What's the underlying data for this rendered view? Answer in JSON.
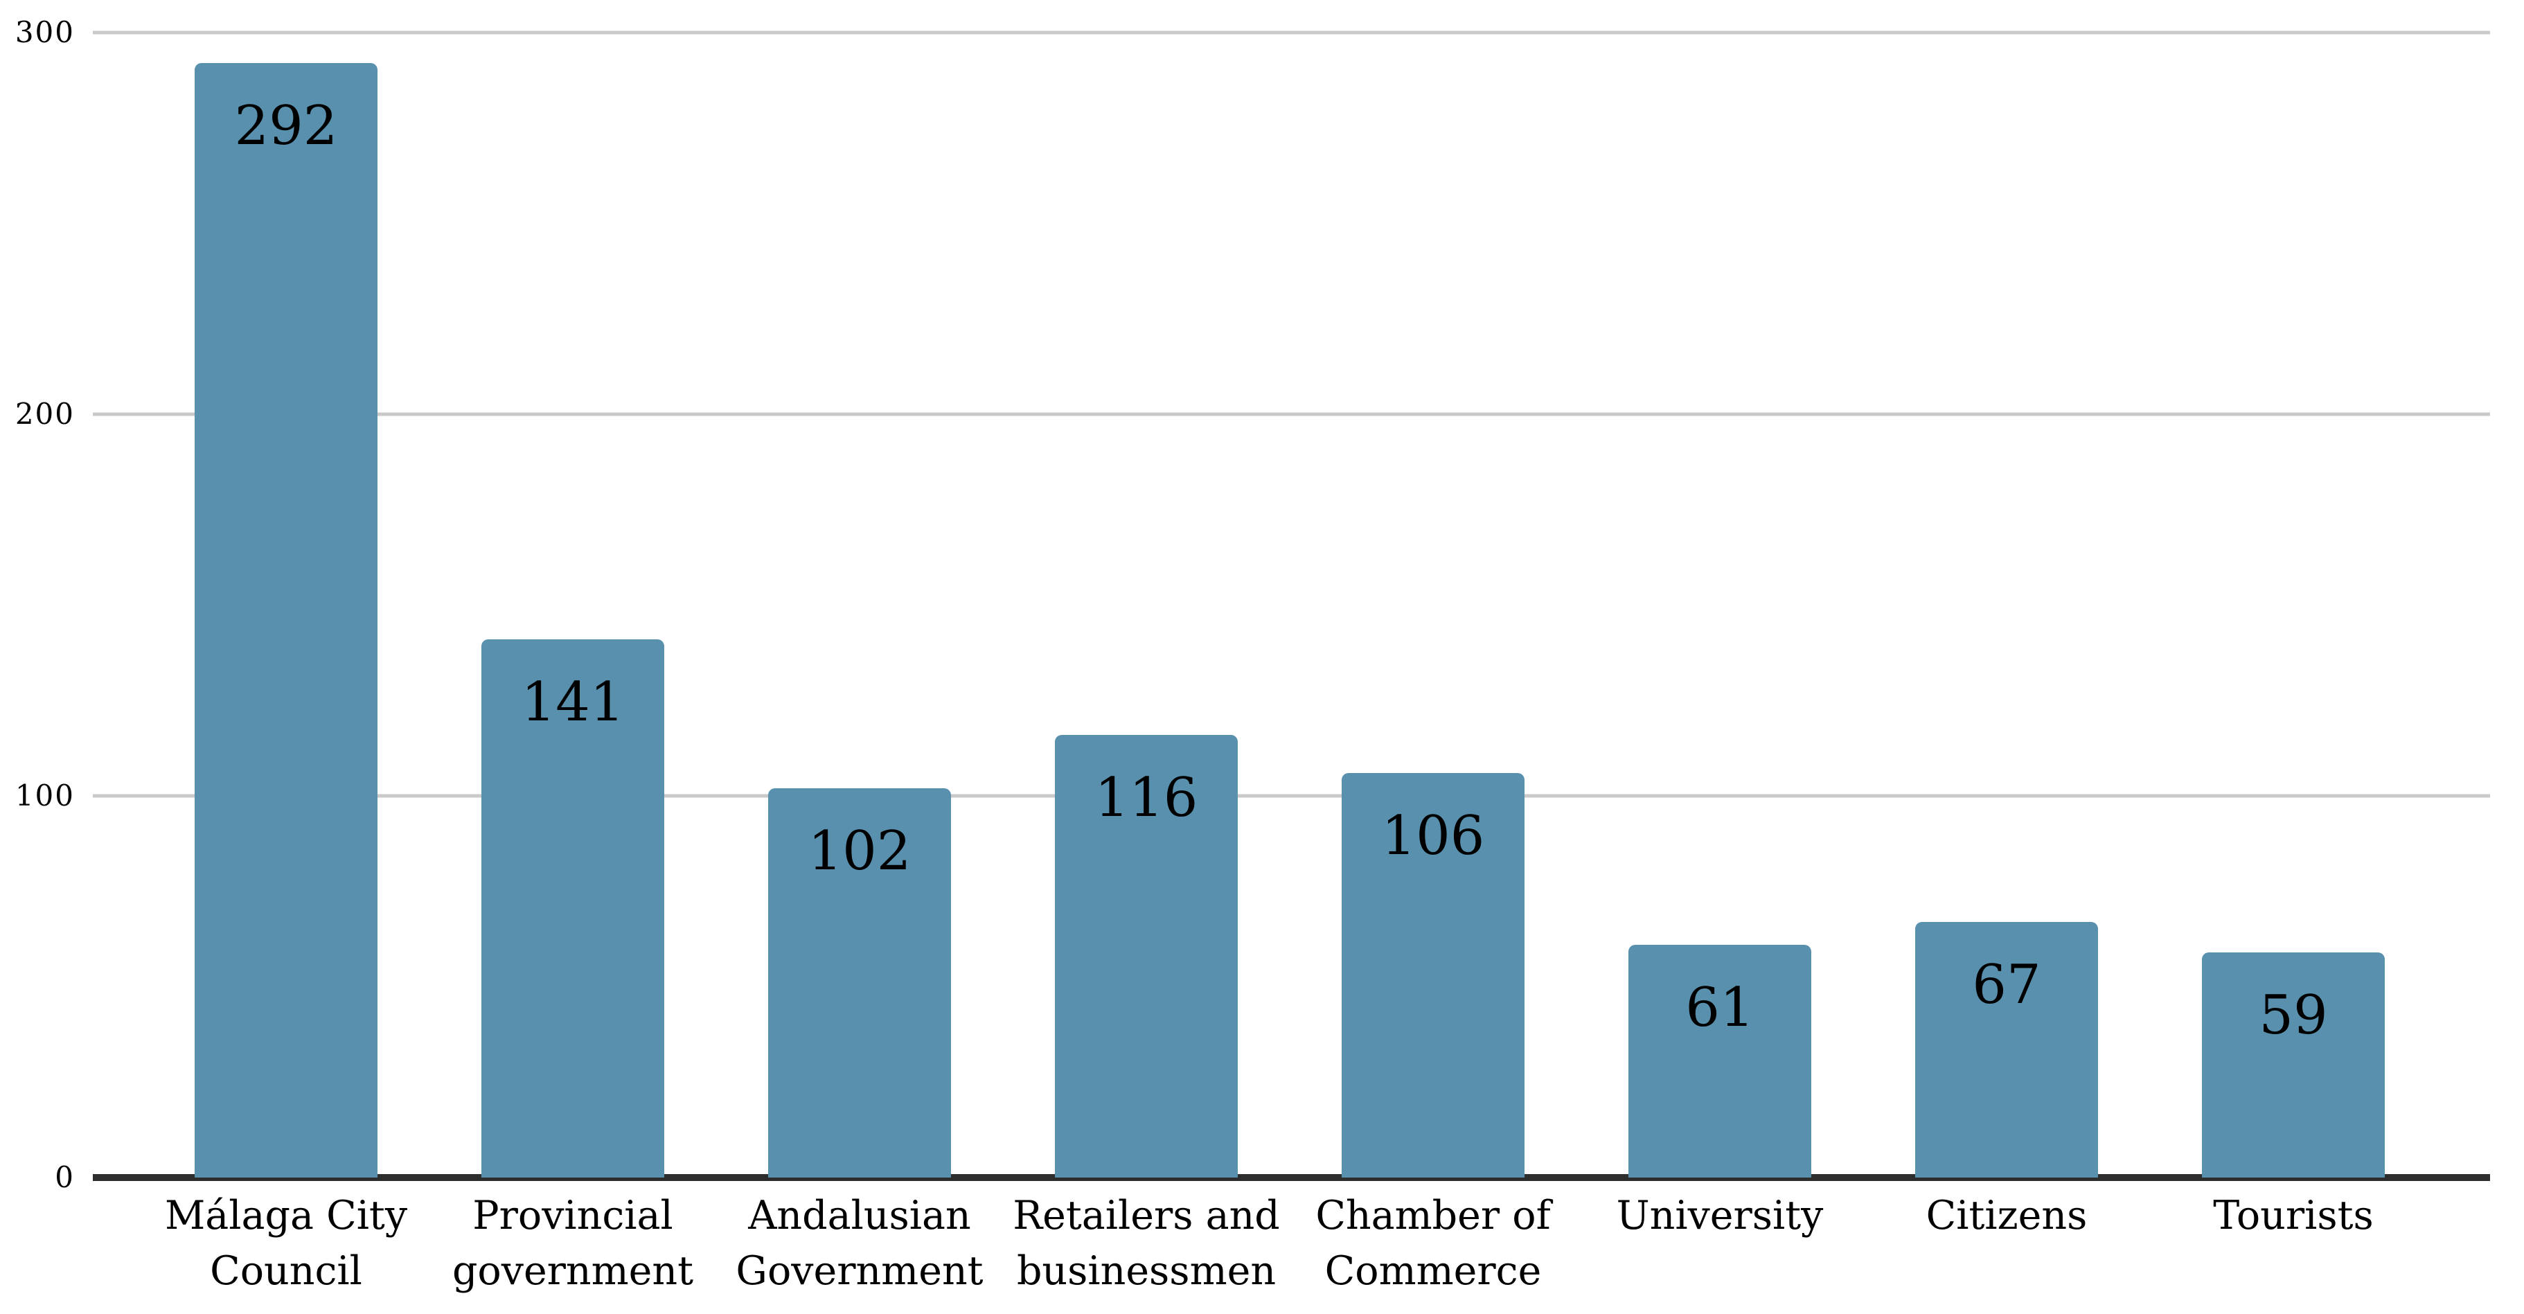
{
  "chart_data": {
    "type": "bar",
    "categories": [
      "Málaga City Council",
      "Provincial government",
      "Andalusian Government",
      "Retailers and businessmen",
      "Chamber of Commerce",
      "University",
      "Citizens",
      "Tourists"
    ],
    "values": [
      292,
      141,
      102,
      116,
      106,
      61,
      67,
      59
    ],
    "title": "",
    "xlabel": "",
    "ylabel": "",
    "ylim": [
      0,
      300
    ],
    "yticks": [
      0,
      100,
      200,
      300
    ],
    "grid": "horizontal-gridlines-at-100-200-300",
    "legend": "none",
    "value_labels": "inside-bar-top",
    "colors": {
      "bar": "#5890ad",
      "gridline": "#c9c9c9",
      "axis_line": "#2d2d2d",
      "text": "#000000",
      "background": "#ffffff"
    }
  }
}
